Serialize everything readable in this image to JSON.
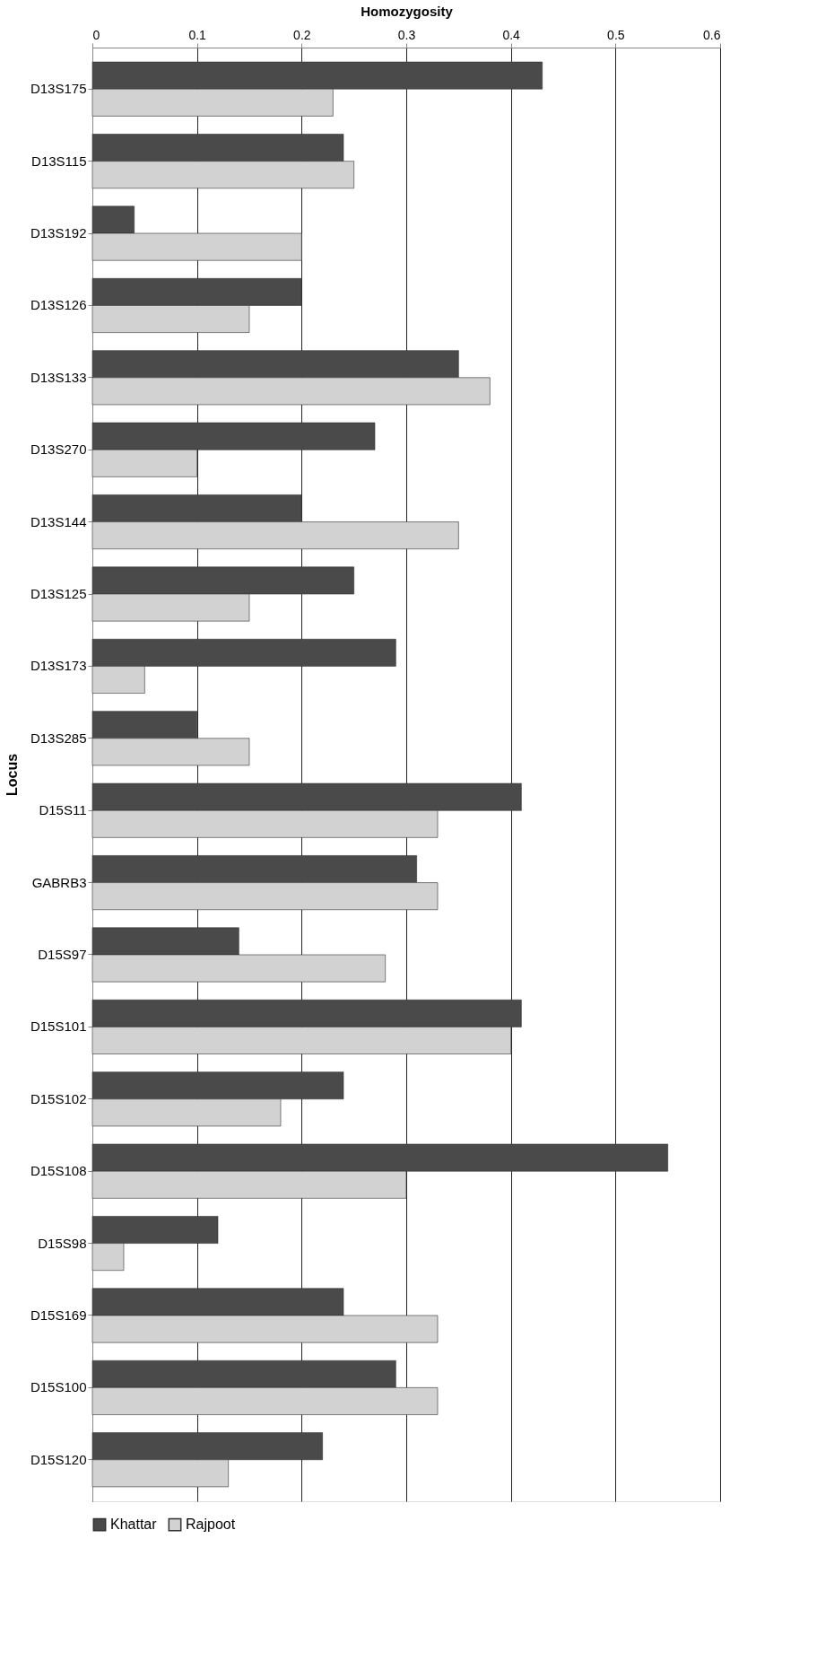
{
  "chart_data": {
    "type": "bar",
    "orientation": "horizontal",
    "xlabel": "Homozygosity",
    "ylabel": "Locus",
    "categories": [
      "D13S175",
      "D13S115",
      "D13S192",
      "D13S126",
      "D13S133",
      "D13S270",
      "D13S144",
      "D13S125",
      "D13S173",
      "D13S285",
      "D15S11",
      "GABRB3",
      "D15S97",
      "D15S101",
      "D15S102",
      "D15S108",
      "D15S98",
      "D15S169",
      "D15S100",
      "D15S120"
    ],
    "series": [
      {
        "name": "Khattar",
        "color": "#4a4a4a",
        "values": [
          0.43,
          0.24,
          0.04,
          0.2,
          0.35,
          0.27,
          0.2,
          0.25,
          0.29,
          0.1,
          0.41,
          0.31,
          0.14,
          0.41,
          0.24,
          0.55,
          0.12,
          0.24,
          0.29,
          0.22
        ]
      },
      {
        "name": "Rajpoot",
        "color": "#d2d2d2",
        "values": [
          0.23,
          0.25,
          0.2,
          0.15,
          0.38,
          0.1,
          0.35,
          0.15,
          0.05,
          0.15,
          0.33,
          0.33,
          0.28,
          0.4,
          0.18,
          0.3,
          0.03,
          0.33,
          0.33,
          0.13
        ]
      }
    ],
    "xlim": [
      0,
      0.6
    ],
    "xticks": [
      0,
      0.1,
      0.2,
      0.3,
      0.4,
      0.5,
      0.6
    ],
    "grid": "x",
    "legend": "bottom"
  }
}
